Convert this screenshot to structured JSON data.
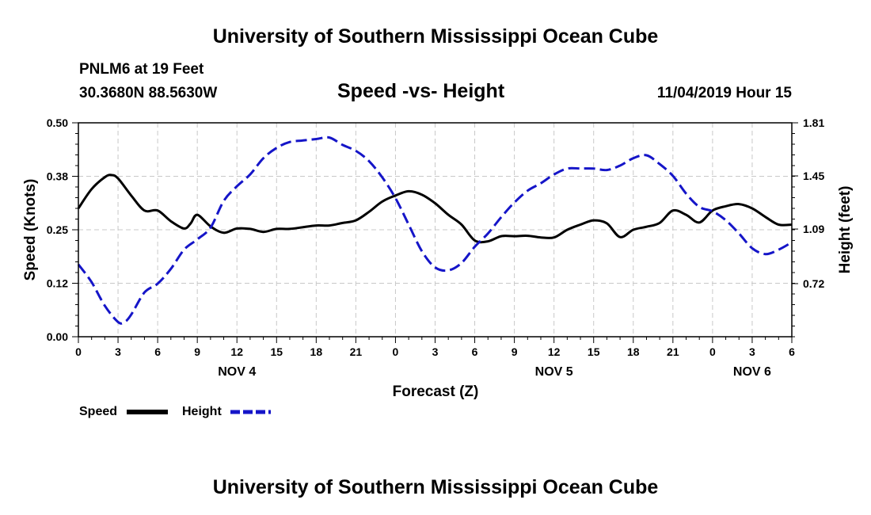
{
  "header": {
    "title": "University of Southern Mississippi Ocean Cube",
    "station": "PNLM6 at 19 Feet",
    "coords": "30.3680N 88.5630W",
    "datetime": "11/04/2019 Hour 15"
  },
  "footer": {
    "title": "University of Southern Mississippi Ocean Cube"
  },
  "legend": {
    "speed_label": "Speed",
    "height_label": "Height"
  },
  "colors": {
    "speed": "#000000",
    "height": "#1515c8",
    "grid": "#c8c8c8"
  },
  "chart_data": {
    "type": "line",
    "title": "Speed -vs- Height",
    "xlabel": "Forecast (Z)",
    "ylabel_left": "Speed (Knots)",
    "ylabel_right": "Height (feet)",
    "xlim": [
      0,
      54
    ],
    "ylim_left": [
      0,
      0.5
    ],
    "ylim_right": [
      0.36,
      1.81
    ],
    "x_ticks": [
      0,
      3,
      6,
      9,
      12,
      15,
      18,
      21,
      24,
      27,
      30,
      33,
      36,
      39,
      42,
      45,
      48,
      51,
      54
    ],
    "x_tick_labels": [
      "0",
      "3",
      "6",
      "9",
      "12",
      "15",
      "18",
      "21",
      "0",
      "3",
      "6",
      "9",
      "12",
      "15",
      "18",
      "21",
      "0",
      "3",
      "6"
    ],
    "y_left_ticks": [
      0.0,
      0.125,
      0.25,
      0.375,
      0.5
    ],
    "y_left_tick_labels": [
      "0.00",
      "0.12",
      "0.25",
      "0.38",
      "0.50"
    ],
    "y_right_ticks": [
      0.72,
      1.09,
      1.45,
      1.81
    ],
    "y_right_tick_labels": [
      "0.72",
      "1.09",
      "1.45",
      "1.81"
    ],
    "day_labels": [
      {
        "x": 12,
        "label": "NOV 4"
      },
      {
        "x": 36,
        "label": "NOV 5"
      },
      {
        "x": 51,
        "label": "NOV 6"
      }
    ],
    "grid": true,
    "series": [
      {
        "name": "Speed",
        "axis": "left",
        "style": "solid",
        "x": [
          0,
          1,
          2,
          2.5,
          3,
          4,
          5,
          6,
          7,
          8,
          8.5,
          9,
          10,
          11,
          12,
          13,
          14,
          15,
          16,
          17,
          18,
          19,
          20,
          21,
          22,
          23,
          24,
          25,
          26,
          27,
          28,
          29,
          30,
          31,
          32,
          33,
          34,
          35,
          36,
          37,
          38,
          39,
          40,
          41,
          42,
          43,
          44,
          45,
          46,
          47,
          48,
          49,
          50,
          51,
          52,
          53,
          54
        ],
        "values": [
          0.3,
          0.345,
          0.373,
          0.378,
          0.37,
          0.33,
          0.295,
          0.295,
          0.27,
          0.253,
          0.265,
          0.285,
          0.258,
          0.243,
          0.253,
          0.252,
          0.245,
          0.252,
          0.252,
          0.256,
          0.26,
          0.26,
          0.266,
          0.272,
          0.292,
          0.316,
          0.33,
          0.34,
          0.332,
          0.312,
          0.285,
          0.262,
          0.225,
          0.223,
          0.235,
          0.235,
          0.236,
          0.232,
          0.232,
          0.25,
          0.262,
          0.272,
          0.265,
          0.233,
          0.25,
          0.257,
          0.266,
          0.295,
          0.285,
          0.267,
          0.295,
          0.305,
          0.31,
          0.3,
          0.28,
          0.262,
          0.262
        ]
      },
      {
        "name": "Height",
        "axis": "right",
        "style": "dashed",
        "x": [
          0,
          1,
          2,
          3,
          3.5,
          4,
          5,
          6,
          7,
          8,
          9,
          10,
          11,
          12,
          13,
          14,
          15,
          16,
          17,
          18,
          19,
          20,
          21,
          22,
          23,
          24,
          25,
          26,
          27,
          28,
          29,
          30,
          31,
          32,
          33,
          34,
          35,
          36,
          37,
          38,
          39,
          40,
          41,
          42,
          43,
          44,
          45,
          46,
          47,
          48,
          49,
          50,
          51,
          52,
          53,
          54
        ],
        "values": [
          0.85,
          0.73,
          0.57,
          0.46,
          0.46,
          0.51,
          0.66,
          0.72,
          0.82,
          0.95,
          1.02,
          1.1,
          1.28,
          1.38,
          1.46,
          1.57,
          1.64,
          1.68,
          1.69,
          1.7,
          1.71,
          1.66,
          1.62,
          1.55,
          1.44,
          1.3,
          1.12,
          0.94,
          0.83,
          0.81,
          0.86,
          0.97,
          1.06,
          1.17,
          1.27,
          1.35,
          1.4,
          1.46,
          1.5,
          1.5,
          1.5,
          1.49,
          1.52,
          1.57,
          1.59,
          1.53,
          1.45,
          1.33,
          1.24,
          1.21,
          1.15,
          1.06,
          0.96,
          0.92,
          0.95,
          1.0
        ]
      }
    ]
  }
}
